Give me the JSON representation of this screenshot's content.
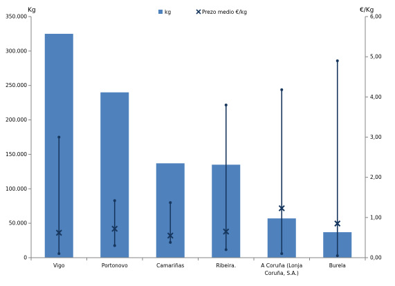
{
  "chart_data": {
    "type": "bar",
    "y_left_label": "Kg",
    "y_right_label": "€/Kg",
    "y_left_range": [
      0,
      350000
    ],
    "y_left_ticks": [
      "0",
      "50.000",
      "100.000",
      "150.000",
      "200.000",
      "250.000",
      "300.000",
      "350.000"
    ],
    "y_right_range": [
      0,
      6
    ],
    "y_right_ticks": [
      "0,00",
      "1,00",
      "2,00",
      "3,00",
      "4,00",
      "5,00",
      "6,00"
    ],
    "grid": false,
    "legend_position": "top-center",
    "categories": [
      [
        "Vigo"
      ],
      [
        "Portonovo"
      ],
      [
        "Camariñas"
      ],
      [
        "Ribeira."
      ],
      [
        "A Coruña (Lonja",
        "Coruña, S.A.)"
      ],
      [
        "Burela"
      ]
    ],
    "series": [
      {
        "name": "kg",
        "kind": "bar",
        "axis": "left",
        "color": "#4f81bd",
        "values": [
          325000,
          240000,
          137000,
          135000,
          57000,
          37000
        ]
      },
      {
        "name": "Prezo medio €/kg",
        "kind": "range-marker",
        "axis": "right",
        "color": "#17375e",
        "mean": [
          0.62,
          0.72,
          0.55,
          0.65,
          1.23,
          0.85
        ],
        "min": [
          0.1,
          0.3,
          0.38,
          0.2,
          0.1,
          0.05
        ],
        "max": [
          3.0,
          1.42,
          1.37,
          3.8,
          4.18,
          4.9
        ]
      }
    ]
  }
}
